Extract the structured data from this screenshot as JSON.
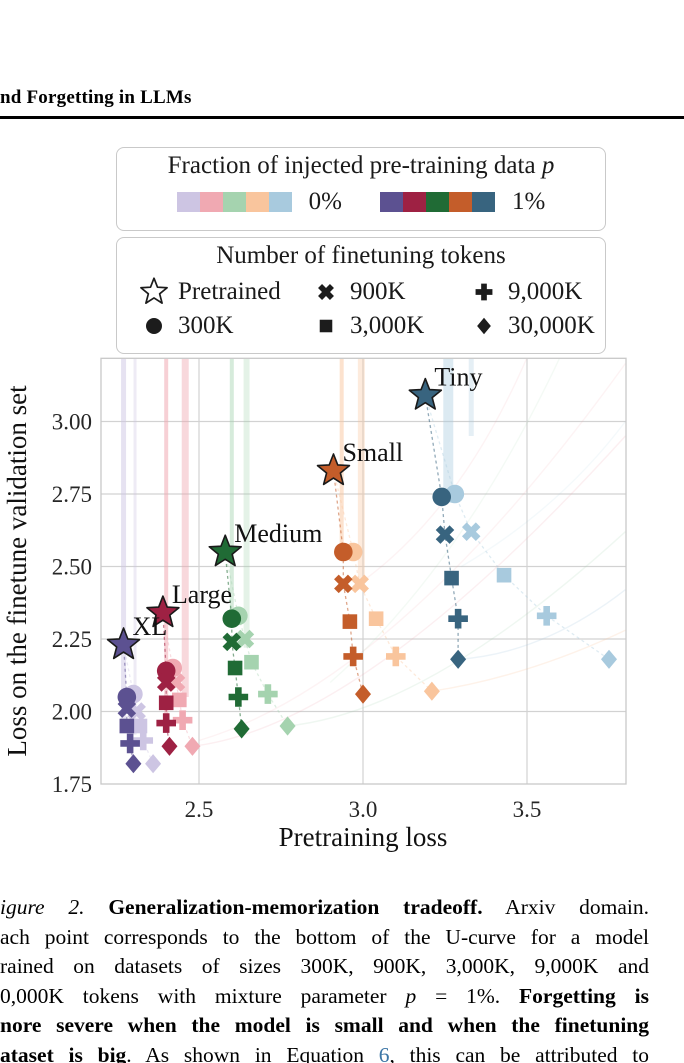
{
  "page": {
    "header": "nd Forgetting in LLMs"
  },
  "legend_fraction": {
    "title": "Fraction of injected pre-training data",
    "title_var": "p",
    "groups": [
      {
        "label": "0%",
        "colors": [
          "#cdc5e3",
          "#f0a9b2",
          "#a5d3af",
          "#f9c59d",
          "#a8cade"
        ]
      },
      {
        "label": "1%",
        "colors": [
          "#5c5191",
          "#9e2143",
          "#206b35",
          "#c45d2a",
          "#38647f"
        ]
      }
    ]
  },
  "legend_tokens": {
    "title": "Number of finetuning tokens",
    "entries": [
      {
        "marker": "star-open",
        "label": "Pretrained"
      },
      {
        "marker": "x",
        "label": "900K"
      },
      {
        "marker": "plus",
        "label": "9,000K"
      },
      {
        "marker": "circle",
        "label": "300K"
      },
      {
        "marker": "square",
        "label": "3,000K"
      },
      {
        "marker": "diamond",
        "label": "30,000K"
      }
    ]
  },
  "chart_data": {
    "type": "scatter",
    "xlabel": "Pretraining loss",
    "ylabel": "Loss on the finetune validation set",
    "xlim": [
      2.2,
      3.8
    ],
    "ylim": [
      1.75,
      3.22
    ],
    "xticks": [
      "2.5",
      "3.0",
      "3.5"
    ],
    "yticks": [
      "3.00",
      "2.75",
      "2.50",
      "2.25",
      "2.00",
      "1.75"
    ],
    "grid": true,
    "legend_position": "above",
    "marker_meaning": {
      "star": "Pretrained",
      "circle": "300K",
      "x": "900K",
      "square": "3,000K",
      "plus": "9,000K",
      "diamond": "30,000K"
    },
    "series": [
      {
        "name": "XL p=0%",
        "model": "XL",
        "p": "0%",
        "color": "#cdc5e3",
        "origin": {
          "x": 2.27,
          "y": 2.23
        },
        "points": [
          {
            "marker": "circle",
            "x": 2.3,
            "y": 2.06
          },
          {
            "marker": "x",
            "x": 2.31,
            "y": 2.0
          },
          {
            "marker": "square",
            "x": 2.32,
            "y": 1.95
          },
          {
            "marker": "plus",
            "x": 2.33,
            "y": 1.9
          },
          {
            "marker": "diamond",
            "x": 2.36,
            "y": 1.82
          }
        ]
      },
      {
        "name": "XL p=1%",
        "model": "XL",
        "p": "1%",
        "color": "#5c5191",
        "points": [
          {
            "marker": "star",
            "x": 2.27,
            "y": 2.23
          },
          {
            "marker": "circle",
            "x": 2.28,
            "y": 2.05
          },
          {
            "marker": "x",
            "x": 2.28,
            "y": 2.01
          },
          {
            "marker": "square",
            "x": 2.28,
            "y": 1.95
          },
          {
            "marker": "plus",
            "x": 2.29,
            "y": 1.89
          },
          {
            "marker": "diamond",
            "x": 2.3,
            "y": 1.82
          }
        ]
      },
      {
        "name": "Large p=0%",
        "model": "Large",
        "p": "0%",
        "color": "#f0a9b2",
        "origin": {
          "x": 2.39,
          "y": 2.34
        },
        "points": [
          {
            "marker": "circle",
            "x": 2.42,
            "y": 2.15
          },
          {
            "marker": "x",
            "x": 2.43,
            "y": 2.1
          },
          {
            "marker": "square",
            "x": 2.44,
            "y": 2.04
          },
          {
            "marker": "plus",
            "x": 2.45,
            "y": 1.97
          },
          {
            "marker": "diamond",
            "x": 2.48,
            "y": 1.88
          }
        ]
      },
      {
        "name": "Large p=1%",
        "model": "Large",
        "p": "1%",
        "color": "#9e2143",
        "points": [
          {
            "marker": "star",
            "x": 2.39,
            "y": 2.34
          },
          {
            "marker": "circle",
            "x": 2.4,
            "y": 2.14
          },
          {
            "marker": "x",
            "x": 2.4,
            "y": 2.1
          },
          {
            "marker": "square",
            "x": 2.4,
            "y": 2.03
          },
          {
            "marker": "plus",
            "x": 2.4,
            "y": 1.96
          },
          {
            "marker": "diamond",
            "x": 2.41,
            "y": 1.88
          }
        ]
      },
      {
        "name": "Medium p=0%",
        "model": "Medium",
        "p": "0%",
        "color": "#a5d3af",
        "origin": {
          "x": 2.58,
          "y": 2.55
        },
        "points": [
          {
            "marker": "circle",
            "x": 2.62,
            "y": 2.33
          },
          {
            "marker": "x",
            "x": 2.64,
            "y": 2.25
          },
          {
            "marker": "square",
            "x": 2.66,
            "y": 2.17
          },
          {
            "marker": "plus",
            "x": 2.71,
            "y": 2.06
          },
          {
            "marker": "diamond",
            "x": 2.77,
            "y": 1.95
          }
        ]
      },
      {
        "name": "Medium p=1%",
        "model": "Medium",
        "p": "1%",
        "color": "#206b35",
        "points": [
          {
            "marker": "star",
            "x": 2.58,
            "y": 2.55
          },
          {
            "marker": "circle",
            "x": 2.6,
            "y": 2.32
          },
          {
            "marker": "x",
            "x": 2.6,
            "y": 2.24
          },
          {
            "marker": "square",
            "x": 2.61,
            "y": 2.15
          },
          {
            "marker": "plus",
            "x": 2.62,
            "y": 2.05
          },
          {
            "marker": "diamond",
            "x": 2.63,
            "y": 1.94
          }
        ]
      },
      {
        "name": "Small p=0%",
        "model": "Small",
        "p": "0%",
        "color": "#f9c59d",
        "origin": {
          "x": 2.91,
          "y": 2.83
        },
        "points": [
          {
            "marker": "circle",
            "x": 2.97,
            "y": 2.55
          },
          {
            "marker": "x",
            "x": 2.99,
            "y": 2.44
          },
          {
            "marker": "square",
            "x": 3.04,
            "y": 2.32
          },
          {
            "marker": "plus",
            "x": 3.1,
            "y": 2.19
          },
          {
            "marker": "diamond",
            "x": 3.21,
            "y": 2.07
          }
        ]
      },
      {
        "name": "Small p=1%",
        "model": "Small",
        "p": "1%",
        "color": "#c45d2a",
        "points": [
          {
            "marker": "star",
            "x": 2.91,
            "y": 2.83
          },
          {
            "marker": "circle",
            "x": 2.94,
            "y": 2.55
          },
          {
            "marker": "x",
            "x": 2.94,
            "y": 2.44
          },
          {
            "marker": "square",
            "x": 2.96,
            "y": 2.31
          },
          {
            "marker": "plus",
            "x": 2.97,
            "y": 2.19
          },
          {
            "marker": "diamond",
            "x": 3.0,
            "y": 2.06
          }
        ]
      },
      {
        "name": "Tiny p=0%",
        "model": "Tiny",
        "p": "0%",
        "color": "#a8cade",
        "origin": {
          "x": 3.19,
          "y": 3.09
        },
        "points": [
          {
            "marker": "circle",
            "x": 3.28,
            "y": 2.75
          },
          {
            "marker": "x",
            "x": 3.33,
            "y": 2.62
          },
          {
            "marker": "square",
            "x": 3.43,
            "y": 2.47
          },
          {
            "marker": "plus",
            "x": 3.56,
            "y": 2.33
          },
          {
            "marker": "diamond",
            "x": 3.75,
            "y": 2.18
          }
        ]
      },
      {
        "name": "Tiny p=1%",
        "model": "Tiny",
        "p": "1%",
        "color": "#38647f",
        "points": [
          {
            "marker": "star",
            "x": 3.19,
            "y": 3.09
          },
          {
            "marker": "circle",
            "x": 3.24,
            "y": 2.74
          },
          {
            "marker": "x",
            "x": 3.25,
            "y": 2.61
          },
          {
            "marker": "square",
            "x": 3.27,
            "y": 2.46
          },
          {
            "marker": "plus",
            "x": 3.29,
            "y": 2.32
          },
          {
            "marker": "diamond",
            "x": 3.29,
            "y": 2.18
          }
        ]
      }
    ],
    "annotations": [
      {
        "text": "Tiny",
        "x": 3.19,
        "y": 3.09
      },
      {
        "text": "Small",
        "x": 2.91,
        "y": 2.83
      },
      {
        "text": "Medium",
        "x": 2.58,
        "y": 2.55
      },
      {
        "text": "Large",
        "x": 2.39,
        "y": 2.34
      },
      {
        "text": "XL",
        "x": 2.27,
        "y": 2.23
      }
    ]
  },
  "caption": {
    "lines": [
      [
        {
          "t": "igure 2. ",
          "s": "i"
        },
        {
          "t": "Generalization-memorization tradeoff.",
          "s": "b"
        },
        {
          "t": " Arxiv domain.",
          "s": "n"
        }
      ],
      [
        {
          "t": "ach point corresponds to the bottom of the U-curve for a model",
          "s": "n"
        }
      ],
      [
        {
          "t": "rained on datasets of sizes 300K, 900K, 3,000K, 9,000K and",
          "s": "n"
        }
      ],
      [
        {
          "t": "0,000K tokens with mixture parameter ",
          "s": "n"
        },
        {
          "t": "p",
          "s": "i"
        },
        {
          "t": " = 1%. ",
          "s": "n"
        },
        {
          "t": "Forgetting is",
          "s": "b"
        }
      ],
      [
        {
          "t": "nore severe when the model is small and when the finetuning",
          "s": "b"
        }
      ],
      [
        {
          "t": "ataset is big",
          "s": "b"
        },
        {
          "t": ". As shown in Equation ",
          "s": "n"
        },
        {
          "t": "6",
          "s": "link"
        },
        {
          "t": ", this can be attributed to",
          "s": "n"
        }
      ]
    ]
  }
}
